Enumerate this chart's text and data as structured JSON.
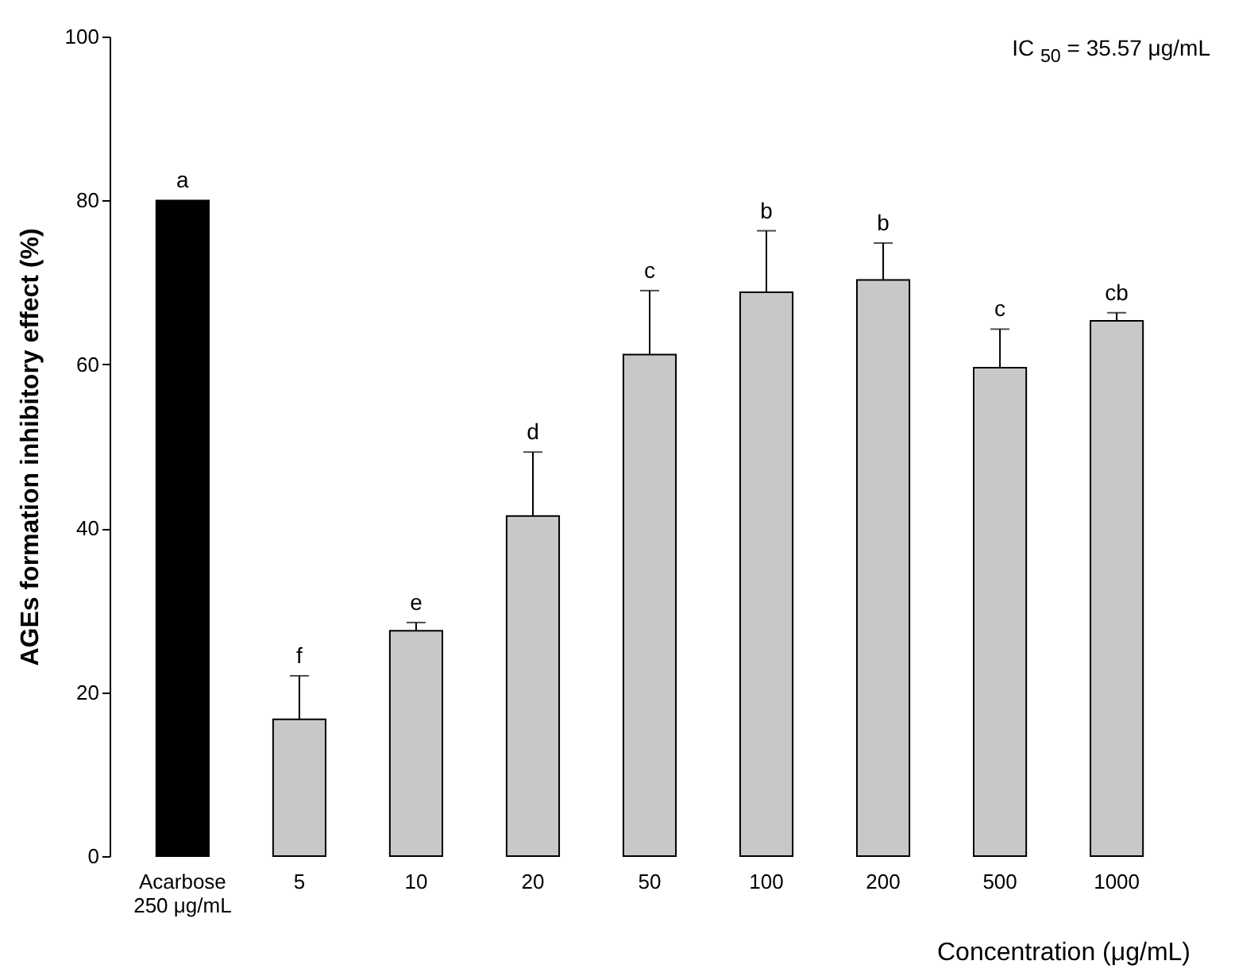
{
  "chart_data": {
    "type": "bar",
    "ylabel": "AGEs formation inhibitory effect (%)",
    "xlabel": "Concentration (μg/mL)",
    "categories": [
      "Acarbose\n250 μg/mL",
      "5",
      "10",
      "20",
      "50",
      "100",
      "200",
      "500",
      "1000"
    ],
    "values": [
      80,
      16.7,
      27.5,
      41.5,
      61.2,
      68.8,
      70.3,
      59.6,
      65.3
    ],
    "colors": [
      "#000000",
      "#c8c8c8",
      "#c8c8c8",
      "#c8c8c8",
      "#c8c8c8",
      "#c8c8c8",
      "#c8c8c8",
      "#c8c8c8",
      "#c8c8c8"
    ],
    "errors": [
      null,
      [
        16.7,
        22
      ],
      [
        27.5,
        28.5
      ],
      [
        41.5,
        49.3
      ],
      [
        61.2,
        69
      ],
      [
        68.8,
        76.3
      ],
      [
        70.3,
        74.8
      ],
      [
        59.6,
        64.3
      ],
      [
        65.3,
        66.3
      ]
    ],
    "ylim": [
      0,
      100
    ],
    "yticks": [
      0,
      20,
      40,
      60,
      80,
      100
    ],
    "grid": false,
    "annotations": [
      {
        "text": "a",
        "x": "Acarbose\n250 μg/mL",
        "y": 80
      },
      {
        "text": "f",
        "x": "5",
        "y": 22
      },
      {
        "text": "e",
        "x": "10",
        "y": 28.5
      },
      {
        "text": "d",
        "x": "20",
        "y": 49.3
      },
      {
        "text": "c",
        "x": "50",
        "y": 69
      },
      {
        "text": "b",
        "x": "100",
        "y": 76.3
      },
      {
        "text": "b",
        "x": "200",
        "y": 74.8
      },
      {
        "text": "c",
        "x": "500",
        "y": 64.3
      },
      {
        "text": "cb",
        "x": "1000",
        "y": 66.3
      },
      "IC $_{50}$ = 35.57 μg/mL"
    ]
  }
}
